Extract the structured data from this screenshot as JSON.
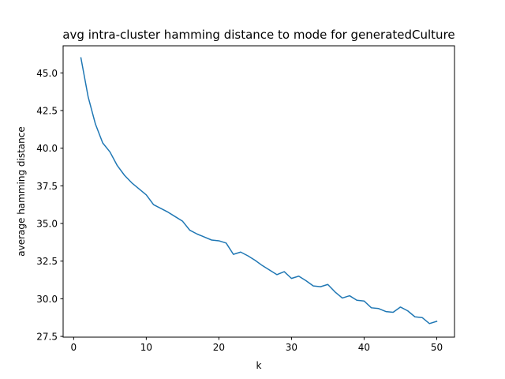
{
  "chart_data": {
    "type": "line",
    "title": "avg intra-cluster hamming distance to mode for generatedCulture",
    "xlabel": "k",
    "ylabel": "average hamming distance",
    "xlim": [
      -1.45,
      52.45
    ],
    "ylim": [
      27.45,
      46.8
    ],
    "grid": false,
    "legend": "none",
    "xticks": [
      0,
      10,
      20,
      30,
      40,
      50
    ],
    "yticks": [
      27.5,
      30.0,
      32.5,
      35.0,
      37.5,
      40.0,
      42.5,
      45.0
    ],
    "xtick_labels": [
      "0",
      "10",
      "20",
      "30",
      "40",
      "50"
    ],
    "ytick_labels": [
      "27.5",
      "30.0",
      "32.5",
      "35.0",
      "37.5",
      "40.0",
      "42.5",
      "45.0"
    ],
    "series": [
      {
        "color": "#1f77b4",
        "x": [
          1,
          2,
          3,
          4,
          5,
          6,
          7,
          8,
          9,
          10,
          11,
          12,
          13,
          14,
          15,
          16,
          17,
          18,
          19,
          20,
          21,
          22,
          23,
          24,
          25,
          26,
          27,
          28,
          29,
          30,
          31,
          32,
          33,
          34,
          35,
          36,
          37,
          38,
          39,
          40,
          41,
          42,
          43,
          44,
          45,
          46,
          47,
          48,
          49,
          50
        ],
        "y": [
          46.0,
          43.4,
          41.6,
          40.35,
          39.75,
          38.85,
          38.2,
          37.7,
          37.3,
          36.9,
          36.25,
          36.0,
          35.75,
          35.45,
          35.15,
          34.55,
          34.3,
          34.1,
          33.9,
          33.85,
          33.7,
          32.95,
          33.1,
          32.85,
          32.55,
          32.2,
          31.9,
          31.6,
          31.8,
          31.35,
          31.5,
          31.2,
          30.85,
          30.8,
          30.95,
          30.45,
          30.05,
          30.2,
          29.9,
          29.85,
          29.4,
          29.35,
          29.15,
          29.1,
          29.45,
          29.2,
          28.8,
          28.75,
          28.35,
          28.5
        ]
      }
    ]
  }
}
